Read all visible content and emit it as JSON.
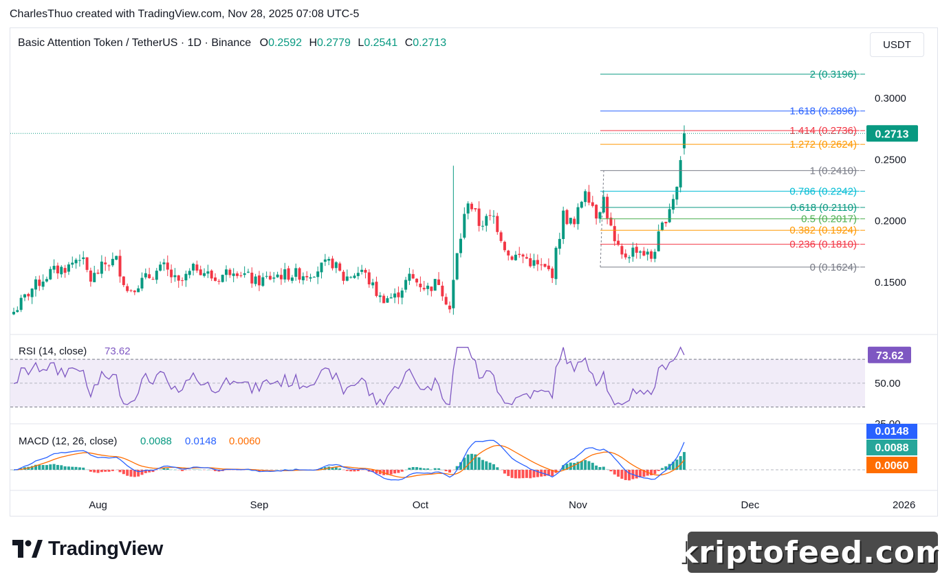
{
  "header": {
    "text": "CharlesThuo created with TradingView.com, Nov 28, 2025 07:08 UTC-5"
  },
  "symbol": {
    "name": "Basic Attention Token / TetherUS · 1D · Binance",
    "open_label": "O",
    "open": "0.2592",
    "high_label": "H",
    "high": "0.2779",
    "low_label": "L",
    "low": "0.2541",
    "close_label": "C",
    "close": "0.2713"
  },
  "currency_button": "USDT",
  "colors": {
    "up": "#089981",
    "down": "#f23645",
    "rsi": "#7e57c2",
    "macd": "#2962ff",
    "signal": "#ff6d00"
  },
  "chart_data": [
    {
      "type": "candlestick",
      "title": "Basic Attention Token / TetherUS · 1D · Binance",
      "price_axis_ticks": [
        "0.3000",
        "0.2500",
        "0.2000",
        "0.1500"
      ],
      "y_range": [
        0.13,
        0.33
      ],
      "time_axis_labels": [
        "Aug",
        "Sep",
        "Oct",
        "Nov",
        "Dec",
        "2026"
      ],
      "last_price": "0.2713",
      "anchors": [
        {
          "day": 0,
          "close": 0.126
        },
        {
          "day": 5,
          "close": 0.145
        },
        {
          "day": 10,
          "close": 0.158
        },
        {
          "day": 15,
          "close": 0.163
        },
        {
          "day": 18,
          "close": 0.172
        },
        {
          "day": 21,
          "close": 0.152
        },
        {
          "day": 25,
          "close": 0.165
        },
        {
          "day": 28,
          "close": 0.168
        },
        {
          "day": 31,
          "close": 0.143
        },
        {
          "day": 36,
          "close": 0.153
        },
        {
          "day": 41,
          "close": 0.162
        },
        {
          "day": 45,
          "close": 0.148
        },
        {
          "day": 50,
          "close": 0.163
        },
        {
          "day": 55,
          "close": 0.152
        },
        {
          "day": 60,
          "close": 0.162
        },
        {
          "day": 66,
          "close": 0.15
        },
        {
          "day": 72,
          "close": 0.156
        },
        {
          "day": 80,
          "close": 0.157
        },
        {
          "day": 87,
          "close": 0.166
        },
        {
          "day": 90,
          "close": 0.153
        },
        {
          "day": 95,
          "close": 0.16
        },
        {
          "day": 100,
          "close": 0.137
        },
        {
          "day": 104,
          "close": 0.138
        },
        {
          "day": 108,
          "close": 0.154
        },
        {
          "day": 113,
          "close": 0.145
        },
        {
          "day": 116,
          "close": 0.151
        },
        {
          "day": 119,
          "close": 0.128
        },
        {
          "day": 121,
          "close": 0.172
        },
        {
          "day": 124,
          "close": 0.218
        },
        {
          "day": 127,
          "close": 0.198
        },
        {
          "day": 131,
          "close": 0.203
        },
        {
          "day": 135,
          "close": 0.172
        },
        {
          "day": 139,
          "close": 0.171
        },
        {
          "day": 143,
          "close": 0.163
        },
        {
          "day": 147,
          "close": 0.158
        },
        {
          "day": 150,
          "close": 0.205
        },
        {
          "day": 153,
          "close": 0.196
        },
        {
          "day": 156,
          "close": 0.228
        },
        {
          "day": 159,
          "close": 0.206
        },
        {
          "day": 161,
          "close": 0.218
        },
        {
          "day": 164,
          "close": 0.181
        },
        {
          "day": 166,
          "close": 0.17
        },
        {
          "day": 170,
          "close": 0.178
        },
        {
          "day": 174,
          "close": 0.17
        },
        {
          "day": 177,
          "close": 0.195
        },
        {
          "day": 179,
          "close": 0.212
        },
        {
          "day": 181,
          "close": 0.228
        },
        {
          "day": 183,
          "close": 0.2713
        }
      ],
      "fibonacci": [
        {
          "level": "2",
          "value": 0.3196,
          "color": "#089981"
        },
        {
          "level": "1.618",
          "value": 0.2896,
          "color": "#2962ff"
        },
        {
          "level": "1.414",
          "value": 0.2736,
          "color": "#f23645"
        },
        {
          "level": "1.272",
          "value": 0.2624,
          "color": "#ff9800"
        },
        {
          "level": "1",
          "value": 0.241,
          "color": "#787b86"
        },
        {
          "level": "0.786",
          "value": 0.2242,
          "color": "#00bcd4"
        },
        {
          "level": "0.618",
          "value": 0.211,
          "color": "#089981"
        },
        {
          "level": "0.5",
          "value": 0.2017,
          "color": "#4caf50"
        },
        {
          "level": "0.382",
          "value": 0.1924,
          "color": "#ff9800"
        },
        {
          "level": "0.236",
          "value": 0.181,
          "color": "#f23645"
        },
        {
          "level": "0",
          "value": 0.1624,
          "color": "#787b86"
        }
      ]
    },
    {
      "type": "line",
      "title": "RSI (14, close)",
      "value": "73.62",
      "y_range": [
        20,
        85
      ],
      "ticks": [
        "50.00",
        "25.00"
      ],
      "bands": [
        30,
        70
      ]
    },
    {
      "type": "bar",
      "title": "MACD (12, 26, close)",
      "values": {
        "histogram": "0.0088",
        "macd": "0.0148",
        "signal": "0.0060"
      }
    }
  ],
  "branding": {
    "logo": "TradingView",
    "watermark": "kriptofeed.com"
  }
}
